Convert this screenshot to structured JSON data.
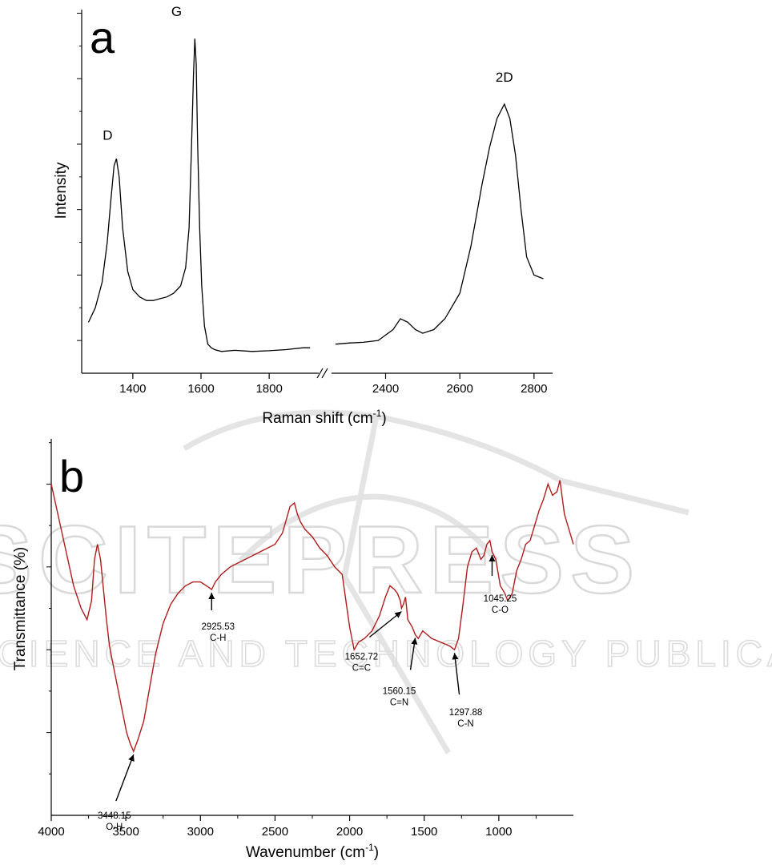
{
  "watermark": {
    "main": "SCITEPRESS",
    "sub": "SCIENCE AND TECHNOLOGY PUBLICATIONS"
  },
  "chart_data": [
    {
      "type": "line",
      "panel_label": "a",
      "xlabel": "Raman shift (cm",
      "xlabel_sup": "-1",
      "xlabel_close": ")",
      "ylabel": "Intensity",
      "x_axis_break": true,
      "segments": [
        {
          "xlim": [
            1250,
            1950
          ],
          "ticks": [
            1400,
            1600,
            1800
          ]
        },
        {
          "xlim": [
            2250,
            2850
          ],
          "ticks": [
            2400,
            2600,
            2800
          ]
        }
      ],
      "ylim": [
        0,
        100
      ],
      "y_ticks_labeled": false,
      "series": [
        {
          "color": "#000000",
          "x": [
            1270,
            1290,
            1310,
            1325,
            1335,
            1345,
            1352,
            1360,
            1370,
            1385,
            1400,
            1420,
            1440,
            1460,
            1480,
            1500,
            1520,
            1540,
            1555,
            1565,
            1572,
            1578,
            1582,
            1586,
            1590,
            1596,
            1602,
            1610,
            1620,
            1630,
            1640,
            1660,
            1700,
            1750,
            1800,
            1850,
            1900,
            1920,
            2265,
            2300,
            2340,
            2380,
            2420,
            2440,
            2460,
            2480,
            2500,
            2530,
            2560,
            2600,
            2630,
            2660,
            2680,
            2700,
            2720,
            2735,
            2750,
            2765,
            2780,
            2800,
            2825
          ],
          "y": [
            14,
            18,
            25,
            36,
            47,
            57,
            59,
            54,
            40,
            28,
            23,
            21,
            20,
            20,
            20.5,
            21,
            22,
            24,
            29,
            40,
            62,
            82,
            92,
            85,
            64,
            40,
            24,
            13,
            8,
            7,
            6.5,
            6,
            6.3,
            6,
            6.2,
            6.5,
            7,
            7,
            8,
            8.3,
            8.5,
            9,
            12,
            15,
            14,
            12,
            11,
            12,
            15,
            22,
            35,
            52,
            62,
            70,
            74,
            70,
            60,
            45,
            32,
            27,
            26
          ]
        }
      ],
      "peak_labels": [
        {
          "text": "D",
          "x": 1345,
          "y": 62
        },
        {
          "text": "G",
          "x": 1580,
          "y": 96
        },
        {
          "text": "2D",
          "x": 2720,
          "y": 78
        }
      ]
    },
    {
      "type": "line",
      "panel_label": "b",
      "xlabel": "Wavenumber (cm",
      "xlabel_sup": "-1",
      "xlabel_close": ")",
      "ylabel": "Transmittance (%)",
      "x_reversed": true,
      "xlim": [
        4000,
        500
      ],
      "x_ticks": [
        4000,
        3500,
        3000,
        2500,
        2000,
        1500,
        1000
      ],
      "ylim": [
        0,
        100
      ],
      "y_ticks_labeled": false,
      "series": [
        {
          "color": "#b01c1c",
          "x": [
            4000,
            3950,
            3900,
            3850,
            3800,
            3760,
            3730,
            3710,
            3690,
            3670,
            3650,
            3630,
            3610,
            3580,
            3550,
            3520,
            3495,
            3470,
            3448,
            3420,
            3380,
            3340,
            3300,
            3250,
            3200,
            3150,
            3100,
            3050,
            3000,
            2960,
            2925,
            2900,
            2860,
            2800,
            2700,
            2600,
            2500,
            2450,
            2400,
            2370,
            2350,
            2330,
            2300,
            2250,
            2200,
            2150,
            2100,
            2050,
            2000,
            1970,
            1940,
            1900,
            1850,
            1800,
            1760,
            1730,
            1700,
            1680,
            1660,
            1652,
            1640,
            1625,
            1610,
            1595,
            1580,
            1560,
            1540,
            1510,
            1480,
            1450,
            1420,
            1390,
            1360,
            1330,
            1297,
            1270,
            1240,
            1210,
            1180,
            1150,
            1120,
            1100,
            1080,
            1060,
            1045,
            1020,
            990,
            960,
            940,
            910,
            880,
            850,
            820,
            790,
            760,
            730,
            700,
            670,
            640,
            610,
            590,
            560,
            530,
            500
          ],
          "y": [
            88,
            79,
            70,
            61,
            55,
            52,
            57,
            68,
            72,
            68,
            60,
            52,
            45,
            39,
            33,
            27,
            22,
            19,
            17,
            20,
            25,
            34,
            43,
            51,
            56,
            59,
            61,
            62,
            62,
            61,
            60,
            62,
            64,
            66,
            68,
            70,
            72,
            75,
            82,
            83,
            80,
            78,
            76,
            74,
            71,
            69,
            66,
            64,
            50,
            44,
            46,
            47,
            49,
            53,
            58,
            61,
            60,
            59,
            57,
            55,
            56,
            58,
            52,
            51,
            50,
            48,
            47,
            49,
            48,
            47,
            46.5,
            46,
            45.5,
            45,
            44,
            47,
            56,
            66,
            70,
            71,
            68,
            69,
            72,
            73,
            70,
            68,
            61,
            59,
            57,
            59,
            65,
            68,
            72,
            73,
            77,
            81,
            84,
            88,
            85,
            86,
            89,
            80,
            76,
            72
          ]
        }
      ],
      "annotations": [
        {
          "value": "3448.15",
          "group": "O-H",
          "x": 3448,
          "y": 17
        },
        {
          "value": "2925.53",
          "group": "C-H",
          "x": 2925,
          "y": 60
        },
        {
          "value": "1652.72",
          "group": "C=C",
          "x": 1652,
          "y": 55
        },
        {
          "value": "1560.15",
          "group": "C=N",
          "x": 1560,
          "y": 48
        },
        {
          "value": "1297.88",
          "group": "C-N",
          "x": 1297,
          "y": 44
        },
        {
          "value": "1045.25",
          "group": "C-O",
          "x": 1045,
          "y": 70
        }
      ]
    }
  ]
}
